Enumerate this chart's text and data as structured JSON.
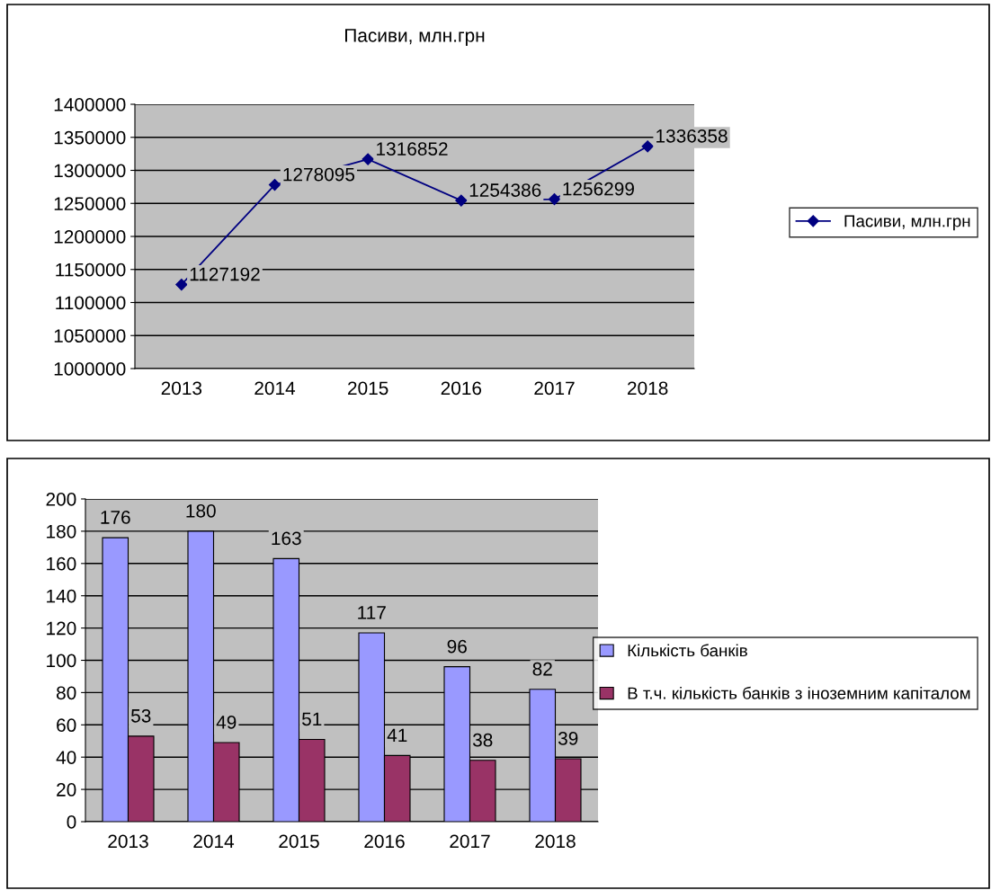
{
  "chart_data": [
    {
      "type": "line",
      "title": "Пасиви, млн.грн",
      "categories": [
        "2013",
        "2014",
        "2015",
        "2016",
        "2017",
        "2018"
      ],
      "series": [
        {
          "name": "Пасиви, млн.грн",
          "color": "#000080",
          "values": [
            1127192,
            1278095,
            1316852,
            1254386,
            1256299,
            1336358
          ]
        }
      ],
      "ylim": [
        1000000,
        1400000
      ],
      "yticks": [
        1000000,
        1050000,
        1100000,
        1150000,
        1200000,
        1250000,
        1300000,
        1350000,
        1400000
      ],
      "grid": "y",
      "legend": "right",
      "marker": "diamond",
      "data_labels": true
    },
    {
      "type": "bar",
      "categories": [
        "2013",
        "2014",
        "2015",
        "2016",
        "2017",
        "2018"
      ],
      "series": [
        {
          "name": "Кількість банків",
          "color": "#9999ff",
          "values": [
            176,
            180,
            163,
            117,
            96,
            82
          ]
        },
        {
          "name": "В т.ч. кількість банків з іноземним капіталом",
          "color": "#993366",
          "values": [
            53,
            49,
            51,
            41,
            38,
            39
          ]
        }
      ],
      "ylim": [
        0,
        200
      ],
      "yticks": [
        0,
        20,
        40,
        60,
        80,
        100,
        120,
        140,
        160,
        180,
        200
      ],
      "grid": "y",
      "legend": "right",
      "data_labels": true
    }
  ]
}
